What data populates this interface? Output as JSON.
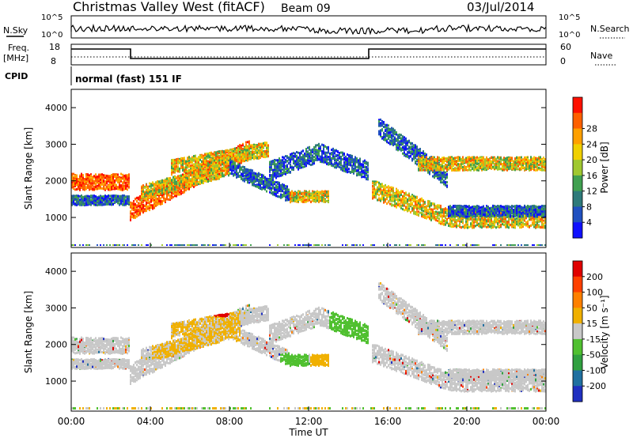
{
  "header": {
    "title": "Christmas Valley West (fitACF)",
    "beam": "Beam 09",
    "date": "03/Jul/2014"
  },
  "top_panels": {
    "nsky_label": "N.Sky",
    "nsky_ticks": [
      "10^5",
      "10^0"
    ],
    "nsearch_label": "N.Search",
    "freq_label_line1": "Freq.",
    "freq_label_line2": "[MHz]",
    "freq_ticks": [
      "18",
      "8"
    ],
    "nave_label": "Nave",
    "nave_ticks": [
      "60",
      "0"
    ],
    "cpid_label": "CPID",
    "cpid_text": "normal (fast) 151 IF"
  },
  "chart_data": [
    {
      "type": "heatmap",
      "name_panel": "power",
      "ylabel": "Slant Range [km]",
      "xlabel": "",
      "x_ticks": [
        "00:00",
        "04:00",
        "08:00",
        "12:00",
        "16:00",
        "20:00",
        "00:00"
      ],
      "y_ticks": [
        1000,
        2000,
        3000,
        4000
      ],
      "ylim": [
        180,
        4500
      ],
      "xlim_hours": [
        0,
        24
      ],
      "colorbar": {
        "label": "Power [dB]",
        "ticks": [
          4,
          8,
          12,
          16,
          20,
          24,
          28
        ],
        "colors": [
          "#1010ff",
          "#2050c0",
          "#2e7a7a",
          "#40a050",
          "#a0c830",
          "#f0d000",
          "#ffa000",
          "#ff6000",
          "#ff1000"
        ]
      }
    },
    {
      "type": "heatmap",
      "name_panel": "velocity",
      "ylabel": "Slant Range [km]",
      "xlabel": "Time UT",
      "x_ticks": [
        "00:00",
        "04:00",
        "08:00",
        "12:00",
        "16:00",
        "20:00",
        "00:00"
      ],
      "y_ticks": [
        1000,
        2000,
        3000,
        4000
      ],
      "ylim": [
        180,
        4500
      ],
      "xlim_hours": [
        0,
        24
      ],
      "colorbar": {
        "label": "Velocity [m s⁻¹]",
        "ticks": [
          "200",
          "100",
          "50",
          "15",
          "-15",
          "-50",
          "-100",
          "-200"
        ],
        "colors": [
          "#2030c0",
          "#2070a0",
          "#30a040",
          "#50c030",
          "#c8c8c8",
          "#f0b000",
          "#ff8000",
          "#ff4000",
          "#e00000"
        ]
      }
    }
  ]
}
